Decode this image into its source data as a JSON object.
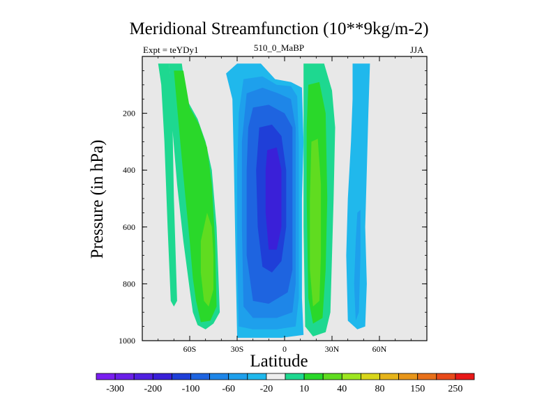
{
  "chart_data": {
    "type": "contour",
    "title": "Meridional Streamfunction (10**9kg/m-2)",
    "subtitle_left": "Expt = teYDy1",
    "subtitle_center": "510_0_MaBP",
    "subtitle_right": "JJA",
    "xlabel": "Latitude",
    "ylabel": "Pressure (in hPa)",
    "xlim": [
      -90,
      90
    ],
    "ylim": [
      1000,
      0
    ],
    "x_ticks": [
      {
        "value": -60,
        "label": "60S"
      },
      {
        "value": -30,
        "label": "30S"
      },
      {
        "value": 0,
        "label": "0"
      },
      {
        "value": 30,
        "label": "30N"
      },
      {
        "value": 60,
        "label": "60N"
      }
    ],
    "y_ticks": [
      {
        "value": 200,
        "label": "200"
      },
      {
        "value": 400,
        "label": "400"
      },
      {
        "value": 600,
        "label": "600"
      },
      {
        "value": 800,
        "label": "800"
      },
      {
        "value": 1000,
        "label": "1000"
      }
    ],
    "missing_color": "#e8e8e8",
    "colorbar": {
      "colors": [
        "#7a1ef0",
        "#6a1fe8",
        "#5020e0",
        "#3a20d8",
        "#1f3fd8",
        "#1e64e0",
        "#1e86e8",
        "#1ea0ec",
        "#20b8ec",
        "#eeeeee",
        "#1ed890",
        "#2ad82a",
        "#60dc20",
        "#9ee620",
        "#d8d61a",
        "#e6b41a",
        "#e8961a",
        "#e8701a",
        "#e84a1a",
        "#e81818"
      ],
      "labels": [
        {
          "value": "-300",
          "boundary": 1
        },
        {
          "value": "-200",
          "boundary": 3
        },
        {
          "value": "-100",
          "boundary": 5
        },
        {
          "value": "-60",
          "boundary": 7
        },
        {
          "value": "-20",
          "boundary": 9
        },
        {
          "value": "10",
          "boundary": 11
        },
        {
          "value": "40",
          "boundary": 13
        },
        {
          "value": "80",
          "boundary": 15
        },
        {
          "value": "150",
          "boundary": 17
        },
        {
          "value": "250",
          "boundary": 19
        }
      ]
    },
    "regions": [
      {
        "name": "SH polar positive cell",
        "level": "10 to 20",
        "color": "#1ed890",
        "outline": [
          [
            -80,
            25
          ],
          [
            -73,
            25
          ],
          [
            -71,
            200
          ],
          [
            -70,
            500
          ],
          [
            -68,
            860
          ],
          [
            -70,
            880
          ],
          [
            -72,
            860
          ],
          [
            -74,
            600
          ],
          [
            -76,
            300
          ],
          [
            -78,
            100
          ]
        ]
      },
      {
        "name": "SH midlatitude positive cell",
        "level": "20 to 40",
        "color": "#1ed890",
        "outline": [
          [
            -73,
            25
          ],
          [
            -65,
            25
          ],
          [
            -62,
            150
          ],
          [
            -55,
            220
          ],
          [
            -50,
            300
          ],
          [
            -46,
            400
          ],
          [
            -43,
            600
          ],
          [
            -41,
            900
          ],
          [
            -45,
            940
          ],
          [
            -50,
            960
          ],
          [
            -55,
            945
          ],
          [
            -58,
            900
          ],
          [
            -60,
            820
          ],
          [
            -64,
            650
          ],
          [
            -68,
            450
          ],
          [
            -71,
            250
          ]
        ]
      },
      {
        "name": "SH midlatitude positive cell core",
        "level": "40 to 60",
        "color": "#2ad82a",
        "outline": [
          [
            -70,
            50
          ],
          [
            -64,
            50
          ],
          [
            -60,
            180
          ],
          [
            -54,
            240
          ],
          [
            -49,
            320
          ],
          [
            -46,
            450
          ],
          [
            -44,
            650
          ],
          [
            -43,
            880
          ],
          [
            -47,
            930
          ],
          [
            -53,
            935
          ],
          [
            -56,
            860
          ],
          [
            -58,
            780
          ],
          [
            -60,
            650
          ],
          [
            -63,
            480
          ],
          [
            -66,
            300
          ]
        ]
      },
      {
        "name": "SH midlatitude positive cell max",
        "level": "60 to 80",
        "color": "#60dc20",
        "outline": [
          [
            -49,
            550
          ],
          [
            -46,
            600
          ],
          [
            -45,
            700
          ],
          [
            -45,
            820
          ],
          [
            -48,
            880
          ],
          [
            -51,
            860
          ],
          [
            -53,
            760
          ],
          [
            -53,
            650
          ]
        ]
      },
      {
        "name": "Tropical negative cell",
        "level": "-20 to -10",
        "color": "#20b8ec",
        "outline": [
          [
            -30,
            25
          ],
          [
            -15,
            25
          ],
          [
            -6,
            80
          ],
          [
            4,
            90
          ],
          [
            11,
            110
          ],
          [
            12,
            300
          ],
          [
            11,
            500
          ],
          [
            11,
            700
          ],
          [
            11,
            850
          ],
          [
            12,
            980
          ],
          [
            -2,
            990
          ],
          [
            -20,
            990
          ],
          [
            -30,
            990
          ],
          [
            -31,
            700
          ],
          [
            -32,
            400
          ],
          [
            -33,
            150
          ],
          [
            -37,
            60
          ]
        ]
      },
      {
        "name": "Tropical negative cell inner",
        "level": "-40 to -20",
        "color": "#1ea0ec",
        "outline": [
          [
            -26,
            80
          ],
          [
            -14,
            70
          ],
          [
            -5,
            100
          ],
          [
            4,
            105
          ],
          [
            8,
            140
          ],
          [
            9,
            300
          ],
          [
            9,
            600
          ],
          [
            9,
            850
          ],
          [
            7,
            950
          ],
          [
            -5,
            960
          ],
          [
            -20,
            960
          ],
          [
            -29,
            950
          ],
          [
            -30,
            700
          ],
          [
            -30,
            400
          ],
          [
            -29,
            200
          ]
        ]
      },
      {
        "name": "Tropical negative cell core",
        "level": "-60 to -40",
        "color": "#1e86e8",
        "outline": [
          [
            -24,
            130
          ],
          [
            -14,
            110
          ],
          [
            -4,
            130
          ],
          [
            4,
            150
          ],
          [
            7,
            250
          ],
          [
            7,
            500
          ],
          [
            7,
            800
          ],
          [
            5,
            900
          ],
          [
            -5,
            920
          ],
          [
            -20,
            920
          ],
          [
            -26,
            880
          ],
          [
            -27,
            600
          ],
          [
            -27,
            300
          ]
        ]
      },
      {
        "name": "Tropical negative cell strong",
        "level": "-80 to -60",
        "color": "#1e64e0",
        "outline": [
          [
            -20,
            180
          ],
          [
            -10,
            170
          ],
          [
            0,
            200
          ],
          [
            5,
            250
          ],
          [
            5,
            500
          ],
          [
            5,
            750
          ],
          [
            2,
            830
          ],
          [
            -10,
            870
          ],
          [
            -20,
            860
          ],
          [
            -24,
            700
          ],
          [
            -24,
            400
          ],
          [
            -23,
            250
          ]
        ]
      },
      {
        "name": "Tropical negative cell max",
        "level": "-100 to -80",
        "color": "#1f3fd8",
        "outline": [
          [
            -16,
            250
          ],
          [
            -8,
            240
          ],
          [
            -2,
            280
          ],
          [
            1,
            400
          ],
          [
            1,
            600
          ],
          [
            -2,
            720
          ],
          [
            -8,
            760
          ],
          [
            -14,
            740
          ],
          [
            -17,
            600
          ],
          [
            -18,
            400
          ]
        ]
      },
      {
        "name": "Tropical negative cell peak",
        "level": "below -100",
        "color": "#3a20d8",
        "outline": [
          [
            -11,
            330
          ],
          [
            -5,
            320
          ],
          [
            -2,
            400
          ],
          [
            -2,
            600
          ],
          [
            -5,
            680
          ],
          [
            -10,
            680
          ],
          [
            -12,
            550
          ],
          [
            -12,
            400
          ]
        ]
      },
      {
        "name": "NH tropical positive cell",
        "level": "10 to 40",
        "color": "#1ed890",
        "outline": [
          [
            12,
            25
          ],
          [
            25,
            25
          ],
          [
            30,
            120
          ],
          [
            32,
            250
          ],
          [
            31,
            500
          ],
          [
            30,
            700
          ],
          [
            29,
            900
          ],
          [
            26,
            970
          ],
          [
            18,
            985
          ],
          [
            13,
            950
          ],
          [
            12,
            600
          ],
          [
            12,
            300
          ],
          [
            12,
            100
          ]
        ]
      },
      {
        "name": "NH tropical positive cell core",
        "level": "40 to 60",
        "color": "#2ad82a",
        "outline": [
          [
            15,
            100
          ],
          [
            22,
            90
          ],
          [
            26,
            200
          ],
          [
            27,
            500
          ],
          [
            26,
            750
          ],
          [
            24,
            920
          ],
          [
            18,
            940
          ],
          [
            15,
            850
          ],
          [
            14,
            500
          ],
          [
            14,
            250
          ]
        ]
      },
      {
        "name": "NH tropical positive cell max",
        "level": "60 to 80",
        "color": "#60dc20",
        "outline": [
          [
            17,
            300
          ],
          [
            21,
            290
          ],
          [
            23,
            450
          ],
          [
            23,
            700
          ],
          [
            22,
            860
          ],
          [
            18,
            880
          ],
          [
            16,
            750
          ],
          [
            16,
            500
          ]
        ]
      },
      {
        "name": "NH midlatitude negative cell",
        "level": "-20 to -10",
        "color": "#20b8ec",
        "outline": [
          [
            43,
            25
          ],
          [
            54,
            25
          ],
          [
            53,
            200
          ],
          [
            52,
            400
          ],
          [
            51,
            600
          ],
          [
            52,
            800
          ],
          [
            51,
            950
          ],
          [
            46,
            960
          ],
          [
            40,
            930
          ],
          [
            39,
            700
          ],
          [
            40,
            500
          ],
          [
            42,
            300
          ],
          [
            43,
            150
          ]
        ]
      },
      {
        "name": "NH midlatitude negative cell core",
        "level": "-40 to -20",
        "color": "#1ea0ec",
        "outline": [
          [
            46,
            550
          ],
          [
            48,
            540
          ],
          [
            48,
            700
          ],
          [
            47,
            900
          ],
          [
            45,
            930
          ],
          [
            44,
            800
          ],
          [
            45,
            650
          ]
        ]
      }
    ]
  }
}
